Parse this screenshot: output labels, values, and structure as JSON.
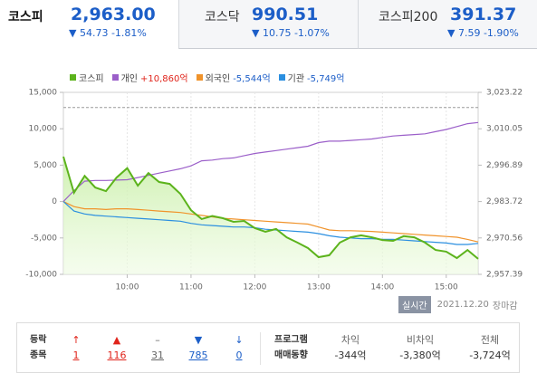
{
  "tabs": [
    {
      "name": "코스피",
      "value": "2,963.00",
      "change": "▼ 54.73",
      "rate": "-1.81%",
      "active": true
    },
    {
      "name": "코스닥",
      "value": "990.51",
      "change": "▼ 10.75",
      "rate": "-1.07%",
      "active": false
    },
    {
      "name": "코스피200",
      "value": "391.37",
      "change": "▼ 7.59",
      "rate": "-1.90%",
      "active": false
    }
  ],
  "chart_data": {
    "type": "line",
    "x": [
      "09:00",
      "09:10",
      "09:20",
      "09:30",
      "09:40",
      "09:50",
      "10:00",
      "10:10",
      "10:20",
      "10:30",
      "10:40",
      "10:50",
      "11:00",
      "11:10",
      "11:20",
      "11:30",
      "11:40",
      "11:50",
      "12:00",
      "12:10",
      "12:20",
      "12:30",
      "12:40",
      "12:50",
      "13:00",
      "13:10",
      "13:20",
      "13:30",
      "13:40",
      "13:50",
      "14:00",
      "14:10",
      "14:20",
      "14:30",
      "14:40",
      "14:50",
      "15:00",
      "15:10",
      "15:20",
      "15:30"
    ],
    "xlim": [
      "09:00",
      "15:30"
    ],
    "xticks": [
      "10:00",
      "11:00",
      "12:00",
      "13:00",
      "14:00",
      "15:00"
    ],
    "ylim": [
      -10000,
      15000
    ],
    "yticks": [
      {
        "value": 15000,
        "label": "15,000"
      },
      {
        "value": 10000,
        "label": "10,000"
      },
      {
        "value": 5000,
        "label": "5,000"
      },
      0,
      {
        "value": -5000,
        "label": "-5,000"
      },
      {
        "value": -10000,
        "label": "-10,000"
      }
    ],
    "y2lim": [
      2957.39,
      3023.22
    ],
    "y2ticks": [
      {
        "value": 3023.22,
        "label": "3,023.22"
      },
      {
        "value": 3010.05,
        "label": "3,010.05"
      },
      {
        "value": 2996.89,
        "label": "2,996.89"
      },
      {
        "value": 2983.72,
        "label": "2,983.72"
      },
      {
        "value": 2970.56,
        "label": "2,970.56"
      },
      {
        "value": 2957.39,
        "label": "2,957.39"
      }
    ],
    "grid": true,
    "reference_line": {
      "value": 3017.73,
      "axis": "y2",
      "color": "#9a9a9a"
    },
    "series": [
      {
        "name": "코스피",
        "color": "#5cb31c",
        "axis": "y2",
        "area": true,
        "values": [
          2999.97,
          2986.9,
          2993.0,
          2988.8,
          2987.5,
          2992.4,
          2995.8,
          2989.5,
          2994.0,
          2990.8,
          2990.1,
          2986.5,
          2980.6,
          2977.4,
          2978.5,
          2977.7,
          2976.4,
          2976.7,
          2974.1,
          2972.8,
          2973.8,
          2970.8,
          2968.9,
          2966.9,
          2963.6,
          2964.3,
          2968.9,
          2970.8,
          2971.5,
          2970.8,
          2969.8,
          2969.5,
          2971.2,
          2970.8,
          2968.9,
          2966.2,
          2965.6,
          2963.3,
          2966.2,
          2963.0
        ]
      },
      {
        "name": "개인",
        "legend_value": "+10,860억",
        "legend_value_color": "#e0241b",
        "color": "#9b5fc9",
        "values": [
          0,
          1500,
          2800,
          2900,
          2900,
          2950,
          3000,
          3300,
          3600,
          3900,
          4200,
          4500,
          4900,
          5600,
          5700,
          5900,
          6000,
          6300,
          6600,
          6800,
          7000,
          7200,
          7400,
          7600,
          8100,
          8300,
          8300,
          8400,
          8500,
          8600,
          8800,
          9000,
          9100,
          9200,
          9300,
          9600,
          9900,
          10300,
          10700,
          10860
        ]
      },
      {
        "name": "외국인",
        "legend_value": "-5,544억",
        "legend_value_color": "#1c5ec8",
        "color": "#f0932b",
        "values": [
          0,
          -700,
          -1000,
          -1000,
          -1100,
          -1000,
          -1000,
          -1100,
          -1200,
          -1300,
          -1400,
          -1500,
          -1700,
          -1900,
          -2100,
          -2300,
          -2400,
          -2500,
          -2600,
          -2700,
          -2800,
          -2900,
          -3000,
          -3100,
          -3500,
          -3900,
          -4000,
          -4000,
          -4050,
          -4100,
          -4200,
          -4300,
          -4400,
          -4500,
          -4600,
          -4700,
          -4800,
          -4900,
          -5200,
          -5544
        ]
      },
      {
        "name": "기관",
        "legend_value": "-5,749억",
        "legend_value_color": "#1c5ec8",
        "color": "#2b8fe0",
        "values": [
          0,
          -1300,
          -1700,
          -1900,
          -2000,
          -2100,
          -2200,
          -2300,
          -2400,
          -2500,
          -2600,
          -2700,
          -3000,
          -3200,
          -3300,
          -3400,
          -3500,
          -3500,
          -3600,
          -3800,
          -3900,
          -4000,
          -4100,
          -4200,
          -4400,
          -4700,
          -4900,
          -5000,
          -5100,
          -5100,
          -5200,
          -5200,
          -5300,
          -5400,
          -5500,
          -5600,
          -5700,
          -5900,
          -5900,
          -5749
        ]
      }
    ]
  },
  "status": {
    "button": "실시간",
    "date": "2021.12.20",
    "state": "장마감"
  },
  "stats": {
    "label": [
      "등락",
      "종목"
    ],
    "items": [
      {
        "icon": "↑",
        "count": 1,
        "color": "#e0241b"
      },
      {
        "icon": "▲",
        "count": 116,
        "color": "#e0241b"
      },
      {
        "icon": "–",
        "count": 31,
        "color": "#666666"
      },
      {
        "icon": "▼",
        "count": 785,
        "color": "#1c5ec8"
      },
      {
        "icon": "↓",
        "count": 0,
        "color": "#1c5ec8"
      }
    ]
  },
  "program": {
    "label": [
      "프로그램",
      "매매동향"
    ],
    "columns": [
      {
        "label": "차익",
        "value": "-344억"
      },
      {
        "label": "비차익",
        "value": "-3,380억"
      },
      {
        "label": "전체",
        "value": "-3,724억"
      }
    ]
  }
}
